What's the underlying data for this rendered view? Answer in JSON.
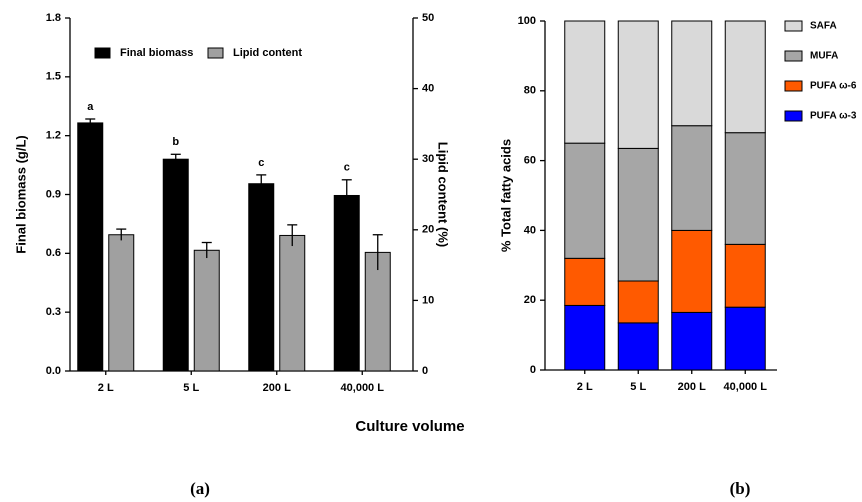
{
  "chart_data": [
    {
      "type": "bar",
      "caption": "(a)",
      "ylabel": "Final biomass (g/L)",
      "y2label": "Lipid content (%)",
      "categories": [
        "2 L",
        "5 L",
        "200 L",
        "40,000 L"
      ],
      "series": [
        {
          "name": "Final biomass",
          "color": "#000000",
          "values": [
            1.265,
            1.08,
            0.955,
            0.895
          ],
          "errors": [
            0.02,
            0.025,
            0.045,
            0.08
          ]
        },
        {
          "name": "Lipid content",
          "color": "#a0a0a0",
          "axis": "y2",
          "values": [
            19.3,
            17.1,
            19.2,
            16.8
          ],
          "errors": [
            0.8,
            1.1,
            1.5,
            2.5
          ]
        }
      ],
      "annotations": [
        "a",
        "b",
        "c",
        "c"
      ],
      "ylim": [
        0,
        1.8
      ],
      "yticks": [
        {
          "value": 0,
          "label": "0.0"
        },
        0.3,
        0.6,
        0.9,
        1.2,
        1.5,
        1.8
      ],
      "y2lim": [
        0,
        50
      ],
      "y2ticks": [
        0,
        10,
        20,
        30,
        40,
        50
      ],
      "grid": false,
      "legend": "top"
    },
    {
      "type": "stacked_bar",
      "caption": "(b)",
      "ylabel": "% Total fatty acids",
      "categories": [
        "2 L",
        "5 L",
        "200 L",
        "40,000 L"
      ],
      "series": [
        {
          "name": "PUFA ω-3",
          "color": "#0000ff",
          "values": [
            18.5,
            13.5,
            16.5,
            18
          ]
        },
        {
          "name": "PUFA ω-6",
          "color": "#ff5a00",
          "values": [
            13.5,
            12,
            23.5,
            18
          ]
        },
        {
          "name": "MUFA",
          "color": "#a6a6a6",
          "values": [
            33,
            38,
            30,
            32
          ]
        },
        {
          "name": "SAFA",
          "color": "#d9d9d9",
          "values": [
            35,
            36.5,
            30,
            32
          ]
        }
      ],
      "ylim": [
        0,
        100
      ],
      "yticks": [
        0,
        20,
        40,
        60,
        80,
        100
      ],
      "grid": false,
      "legend": "right"
    }
  ],
  "xlabel": "Culture volume"
}
